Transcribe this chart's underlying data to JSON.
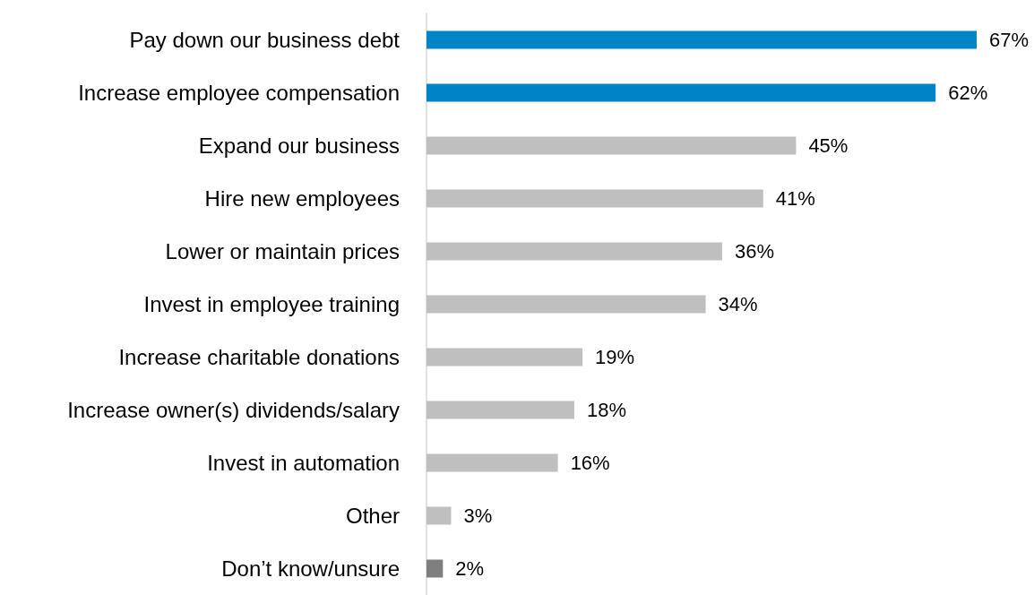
{
  "chart_data": {
    "type": "bar",
    "orientation": "horizontal",
    "categories": [
      "Pay down our business debt",
      "Increase employee compensation",
      "Expand our business",
      "Hire new employees",
      "Lower or maintain prices",
      "Invest in employee training",
      "Increase charitable donations",
      "Increase owner(s) dividends/salary",
      "Invest in automation",
      "Other",
      "Don’t know/unsure"
    ],
    "values": [
      67,
      62,
      45,
      41,
      36,
      34,
      19,
      18,
      16,
      3,
      2
    ],
    "value_labels": [
      "67%",
      "62%",
      "45%",
      "41%",
      "36%",
      "34%",
      "19%",
      "18%",
      "16%",
      "3%",
      "2%"
    ],
    "colors": [
      "#0084c8",
      "#0084c8",
      "#bfbfbf",
      "#bfbfbf",
      "#bfbfbf",
      "#bfbfbf",
      "#bfbfbf",
      "#bfbfbf",
      "#bfbfbf",
      "#bfbfbf",
      "#7f7f7f"
    ]
  }
}
